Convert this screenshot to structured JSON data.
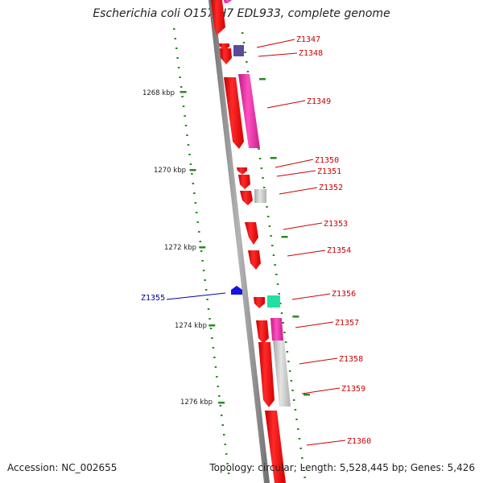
{
  "title": "Escherichia coli O157:H7 EDL933, complete genome",
  "footer": {
    "accession_label": "Accession:",
    "accession": "NC_002655",
    "topology_label": "Topology:",
    "topology": "circular",
    "length_label": "Length:",
    "length": "5,528,445 bp",
    "genes_label": "Genes:",
    "genes": "5,426"
  },
  "colors": {
    "backbone": "#8c8c8c",
    "tick": "#2a8a1f",
    "gene_label": "#cc0000",
    "reverse_label": "#0000aa",
    "red": "#ff1010",
    "magenta": "#ee2fa8",
    "gray": "#c8c8c8",
    "purple": "#5a4a9a",
    "teal": "#22e0a0",
    "blue": "#1515dd"
  },
  "ticks": [
    "1268 kbp",
    "1270 kbp",
    "1272 kbp",
    "1274 kbp",
    "1276 kbp"
  ],
  "genes": [
    {
      "label": "Z1347",
      "color": "red"
    },
    {
      "label": "Z1348",
      "color": "red"
    },
    {
      "label": "Z1349",
      "color": "red"
    },
    {
      "label": "Z1350",
      "color": "red"
    },
    {
      "label": "Z1351",
      "color": "red"
    },
    {
      "label": "Z1352",
      "color": "red"
    },
    {
      "label": "Z1353",
      "color": "red"
    },
    {
      "label": "Z1354",
      "color": "red"
    },
    {
      "label": "Z1355",
      "color": "blue"
    },
    {
      "label": "Z1356",
      "color": "red"
    },
    {
      "label": "Z1357",
      "color": "red"
    },
    {
      "label": "Z1358",
      "color": "red"
    },
    {
      "label": "Z1359",
      "color": "red"
    },
    {
      "label": "Z1360",
      "color": "red"
    }
  ]
}
